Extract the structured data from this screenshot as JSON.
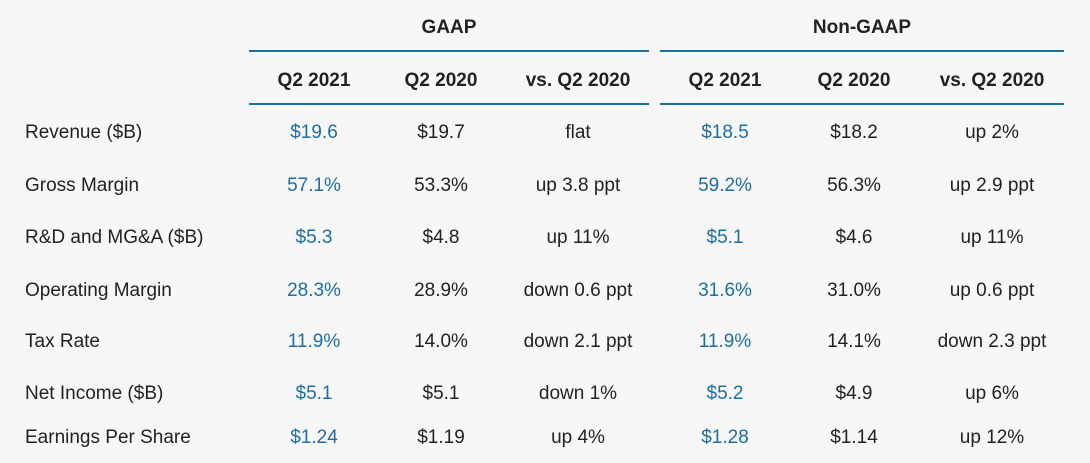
{
  "groups": [
    {
      "label": "GAAP"
    },
    {
      "label": "Non-GAAP"
    }
  ],
  "columns": [
    "Q2 2021",
    "Q2 2020",
    "vs. Q2 2020",
    "Q2 2021",
    "Q2 2020",
    "vs. Q2 2020"
  ],
  "rows": [
    {
      "label": "Revenue ($B)",
      "values": [
        "$19.6",
        "$19.7",
        "flat",
        "$18.5",
        "$18.2",
        "up 2%"
      ]
    },
    {
      "label": "Gross Margin",
      "values": [
        "57.1%",
        "53.3%",
        "up 3.8 ppt",
        "59.2%",
        "56.3%",
        "up 2.9 ppt"
      ]
    },
    {
      "label": "R&D and MG&A ($B)",
      "values": [
        "$5.3",
        "$4.8",
        "up 11%",
        "$5.1",
        "$4.6",
        "up 11%"
      ]
    },
    {
      "label": "Operating Margin",
      "values": [
        "28.3%",
        "28.9%",
        "down 0.6 ppt",
        "31.6%",
        "31.0%",
        "up 0.6 ppt"
      ]
    },
    {
      "label": "Tax Rate",
      "values": [
        "11.9%",
        "14.0%",
        "down 2.1 ppt",
        "11.9%",
        "14.1%",
        "down 2.3 ppt"
      ]
    },
    {
      "label": "Net Income ($B)",
      "values": [
        "$5.1",
        "$5.1",
        "down 1%",
        "$5.2",
        "$4.9",
        "up 6%"
      ]
    },
    {
      "label": "Earnings Per Share",
      "values": [
        "$1.24",
        "$1.19",
        "up 4%",
        "$1.28",
        "$1.14",
        "up 12%"
      ]
    }
  ],
  "colors": {
    "accent": "#1c6ea4",
    "text": "#222222",
    "background": "#f7f7f7"
  }
}
